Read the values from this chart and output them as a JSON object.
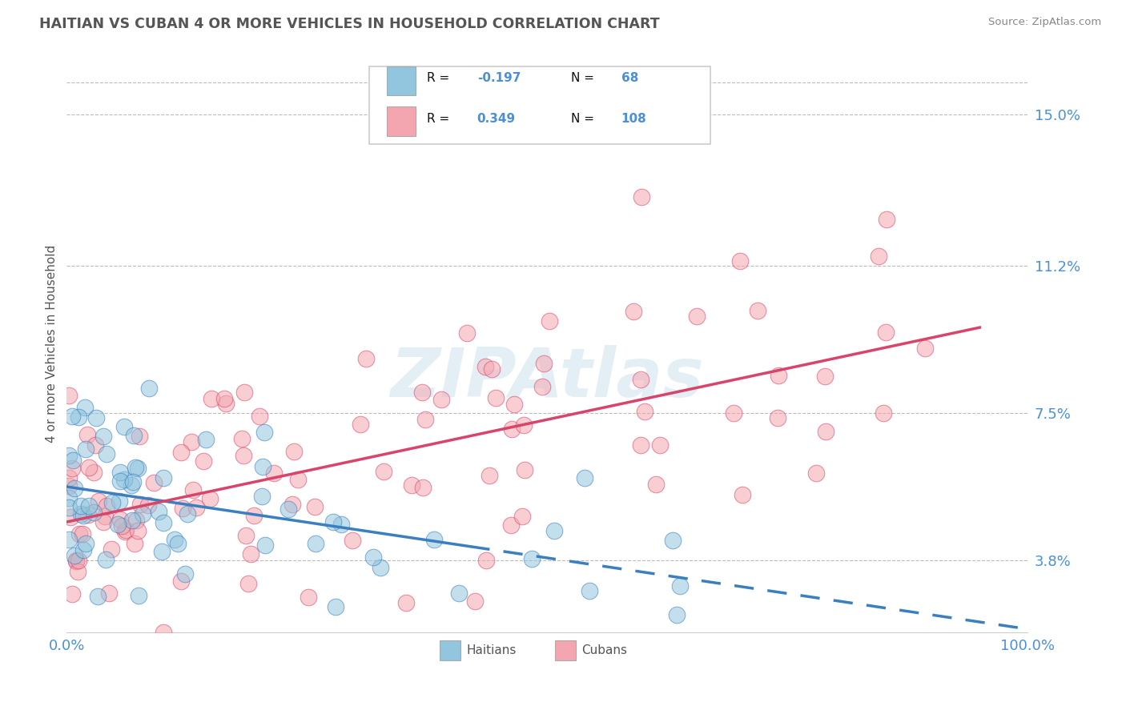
{
  "title": "HAITIAN VS CUBAN 4 OR MORE VEHICLES IN HOUSEHOLD CORRELATION CHART",
  "source": "Source: ZipAtlas.com",
  "ylabel": "4 or more Vehicles in Household",
  "ytick_values": [
    3.8,
    7.5,
    11.2,
    15.0
  ],
  "ylim": [
    2.0,
    16.5
  ],
  "xlim": [
    0.0,
    100.0
  ],
  "legend_label1": "Haitians",
  "legend_label2": "Cubans",
  "r1": "-0.197",
  "n1": "68",
  "r2": "0.349",
  "n2": "108",
  "haitian_color": "#92C5DE",
  "cuban_color": "#F4A6B0",
  "haitian_line_color": "#3a7fbf",
  "cuban_line_color": "#d9446a",
  "title_color": "#555555",
  "axis_label_color": "#4a90d9",
  "watermark": "ZIPAtlas",
  "background_color": "#ffffff",
  "grid_color": "#bbbbbb",
  "h_line_solid_end": 42,
  "h_line_start_y": 5.2,
  "h_line_end_y": 3.0,
  "c_line_start_y": 4.8,
  "c_line_end_y": 9.5
}
